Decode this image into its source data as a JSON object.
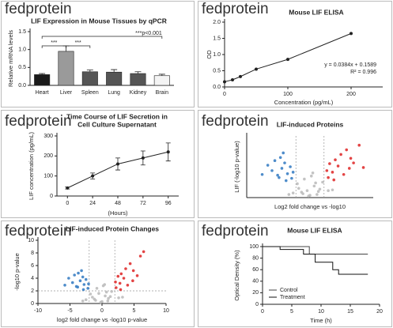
{
  "brand": "fedprotein",
  "chart_data": [
    {
      "type": "bar",
      "title": "LIF Expression in Mouse Tissues by qPCR",
      "ylabel": "Relative mRNA levels",
      "categories": [
        "Heart",
        "Liver",
        "Spleen",
        "Lung",
        "Kidney",
        "Brain"
      ],
      "values": [
        0.3,
        0.95,
        0.38,
        0.37,
        0.33,
        0.27
      ],
      "errors": [
        0.03,
        0.15,
        0.05,
        0.07,
        0.05,
        0.04
      ],
      "colors": [
        "#1a1a1a",
        "#9a9a9a",
        "#555555",
        "#555555",
        "#555555",
        "#f4f4f4"
      ],
      "ylim": [
        0,
        1.5
      ],
      "yticks": [
        {
          "value": 0,
          "label": "0.0"
        },
        {
          "value": 0.5,
          "label": "0.5"
        },
        {
          "value": 1,
          "label": "1.0"
        },
        {
          "value": 1.5,
          "label": "1.5"
        }
      ],
      "annotations": [
        "***",
        "***",
        "***p<0.001"
      ]
    },
    {
      "type": "line",
      "title": "Mouse LIF ELISA",
      "xlabel": "Concentration (pg/mL)",
      "ylabel": "OD",
      "x": [
        0,
        12.5,
        25,
        50,
        100,
        200
      ],
      "values": [
        0.16,
        0.22,
        0.32,
        0.55,
        0.85,
        1.65
      ],
      "color": "#222222",
      "xlim": [
        0,
        250
      ],
      "xticks": [
        0,
        100,
        200
      ],
      "ylim": [
        0,
        2
      ],
      "yticks": [
        {
          "value": 0,
          "label": "0.0"
        },
        {
          "value": 0.5,
          "label": "0.5"
        },
        {
          "value": 1,
          "label": "1.0"
        },
        {
          "value": 1.5,
          "label": "1.5"
        },
        {
          "value": 2,
          "label": "2.0"
        }
      ],
      "annotations": [
        "y = 0.0384x + 0.1589",
        "R² = 0.996"
      ]
    },
    {
      "type": "line",
      "title": [
        "Time Course of LIF Secretion in",
        "Cell Culture Supernatant"
      ],
      "xlabel": "(Hours)",
      "ylabel": "LIF concentration (pg/mL)",
      "x": [
        0,
        24,
        48,
        72,
        96
      ],
      "values": [
        40,
        100,
        160,
        190,
        220
      ],
      "errors": [
        5,
        15,
        30,
        35,
        45
      ],
      "color": "#222222",
      "xlim": [
        -10,
        106
      ],
      "xticks": [
        0,
        24,
        48,
        72,
        96
      ],
      "ylim": [
        0,
        300
      ],
      "yticks": [
        0,
        100,
        200,
        300
      ]
    },
    {
      "type": "scatter",
      "title": "LIF-induced Proteins",
      "xlabel": "Log2 fold change vs -log10",
      "ylabel": "LIF (-log10 p-value)",
      "xlim": [
        -4.5,
        4.5
      ],
      "ylim": [
        0,
        8
      ],
      "vlines": [
        -1,
        1
      ],
      "series": [
        {
          "color": "#bdbdbd",
          "x": [
            -0.8,
            -0.5,
            -0.2,
            0,
            0.3,
            0.6,
            0.9,
            -0.4,
            0.1,
            0.5,
            -0.9,
            0.7,
            -0.1,
            0.2,
            -0.6,
            0.4,
            -1.2,
            1.3,
            -1.5,
            1.6
          ],
          "values": [
            1.2,
            0.5,
            0.9,
            0.3,
            1.5,
            0.8,
            2.0,
            2.4,
            2.8,
            0.4,
            1.8,
            1.1,
            0.2,
            3.2,
            0.7,
            1.9,
            0.6,
            0.9,
            0.4,
            1.0
          ]
        },
        {
          "color": "#3b7fc4",
          "x": [
            -1.3,
            -1.6,
            -2.0,
            -2.3,
            -1.8,
            -2.7,
            -1.4,
            -2.1,
            -3.0,
            -1.7,
            -2.5,
            -1.2,
            -1.9,
            -2.2,
            -3.4
          ],
          "values": [
            2.5,
            3.1,
            3.8,
            2.9,
            4.5,
            3.5,
            4.0,
            5.2,
            4.2,
            2.2,
            4.8,
            3.3,
            5.8,
            2.6,
            3.0
          ]
        },
        {
          "color": "#e03030",
          "x": [
            1.3,
            1.6,
            2.0,
            2.4,
            1.8,
            2.8,
            1.4,
            2.2,
            3.1,
            1.7,
            2.6,
            1.2,
            3.5,
            2.9,
            3.8
          ],
          "values": [
            2.6,
            3.3,
            4.1,
            3.0,
            4.9,
            3.8,
            4.4,
            5.6,
            4.5,
            2.3,
            6.2,
            3.5,
            6.8,
            5.1,
            3.9
          ]
        }
      ]
    },
    {
      "type": "scatter",
      "title": "LIF-induced Protein Changes",
      "xlabel": "log2 fold change vs -log10 p-value",
      "ylabel": "-log10 p-value",
      "xlim": [
        -10,
        10
      ],
      "xticks": [
        -10,
        -5,
        0,
        5,
        10
      ],
      "ylim": [
        0,
        10
      ],
      "yticks": [
        0,
        2,
        4,
        6,
        8,
        10
      ],
      "vlines": [
        -2,
        2
      ],
      "hlines": [
        2
      ],
      "series": [
        {
          "color": "#bdbdbd",
          "x": [
            -1.5,
            -1,
            -0.5,
            0,
            0.5,
            1,
            1.5,
            -0.8,
            0.2,
            0.9,
            -1.8,
            1.3,
            -0.2,
            0.4,
            -1.2,
            0.7,
            -2.5,
            2.6,
            -3,
            3.2
          ],
          "values": [
            1.0,
            0.5,
            1.6,
            0.3,
            1.2,
            0.8,
            1.9,
            2.4,
            2.8,
            0.4,
            1.5,
            1.1,
            0.2,
            3.0,
            0.7,
            1.8,
            0.6,
            0.9,
            0.4,
            1.0
          ]
        },
        {
          "color": "#3b7fc4",
          "x": [
            -2.2,
            -2.8,
            -3.4,
            -4,
            -3,
            -4.6,
            -2.5,
            -3.7,
            -5.2,
            -2.9,
            -4.3,
            -2.1,
            -3.2,
            -3.8,
            -5.8
          ],
          "values": [
            2.4,
            3.0,
            3.6,
            2.7,
            4.2,
            3.3,
            3.8,
            4.8,
            4.0,
            2.2,
            4.5,
            3.1,
            5.2,
            2.6,
            2.9
          ]
        },
        {
          "color": "#e03030",
          "x": [
            2.2,
            2.8,
            3.4,
            4,
            3,
            4.8,
            2.5,
            3.7,
            5.5,
            2.9,
            4.4,
            2.1,
            6,
            4.9,
            6.5
          ],
          "values": [
            2.5,
            3.2,
            4.0,
            2.9,
            4.7,
            3.6,
            4.3,
            5.5,
            4.4,
            2.2,
            6.3,
            3.4,
            7.5,
            5.2,
            8.2
          ]
        }
      ]
    },
    {
      "type": "step",
      "title": "Mouse LIF ELISA",
      "xlabel": "Time (h)",
      "ylabel": "Optical Density (%)",
      "xlim": [
        0,
        20
      ],
      "xticks": [
        0,
        5,
        10,
        15,
        20
      ],
      "ylim": [
        0,
        100
      ],
      "yticks": [
        0,
        20,
        40,
        60,
        80,
        100
      ],
      "legend": "lower left",
      "series": [
        {
          "name": "Control",
          "color": "#444444",
          "x": [
            0,
            8,
            18
          ],
          "values": [
            100,
            87,
            87
          ]
        },
        {
          "name": "Treatment",
          "color": "#111111",
          "x": [
            0,
            3,
            7,
            9,
            12,
            13,
            18
          ],
          "values": [
            100,
            95,
            87,
            73,
            60,
            52,
            52
          ]
        }
      ]
    }
  ]
}
